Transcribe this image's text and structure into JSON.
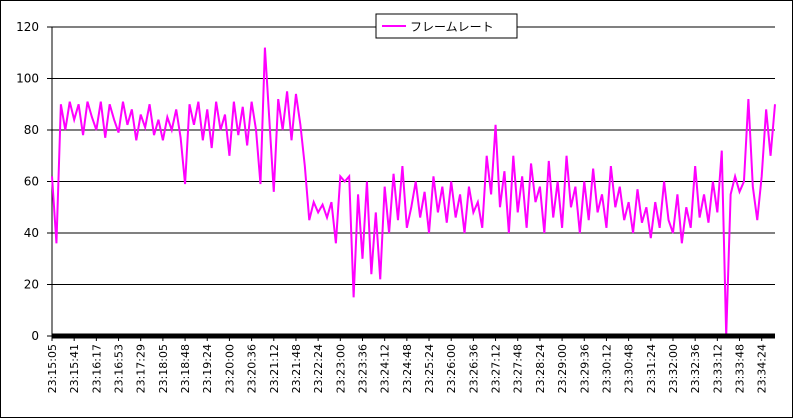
{
  "chart_data": {
    "type": "line",
    "categories": [
      "23:15:05",
      null,
      null,
      null,
      null,
      "23:15:41",
      null,
      null,
      null,
      null,
      "23:16:17",
      null,
      null,
      null,
      null,
      "23:16:53",
      null,
      null,
      null,
      null,
      "23:17:29",
      null,
      null,
      null,
      null,
      "23:18:05",
      null,
      null,
      null,
      null,
      "23:18:48",
      null,
      null,
      null,
      null,
      "23:19:24",
      null,
      null,
      null,
      null,
      "23:20:00",
      null,
      null,
      null,
      null,
      "23:20:36",
      null,
      null,
      null,
      null,
      "23:21:12",
      null,
      null,
      null,
      null,
      "23:21:48",
      null,
      null,
      null,
      null,
      "23:22:24",
      null,
      null,
      null,
      null,
      "23:23:00",
      null,
      null,
      null,
      null,
      "23:23:36",
      null,
      null,
      null,
      null,
      "23:24:12",
      null,
      null,
      null,
      null,
      "23:24:48",
      null,
      null,
      null,
      null,
      "23:25:24",
      null,
      null,
      null,
      null,
      "23:26:00",
      null,
      null,
      null,
      null,
      "23:26:36",
      null,
      null,
      null,
      null,
      "23:27:12",
      null,
      null,
      null,
      null,
      "23:27:48",
      null,
      null,
      null,
      null,
      "23:28:24",
      null,
      null,
      null,
      null,
      "23:29:00",
      null,
      null,
      null,
      null,
      "23:29:36",
      null,
      null,
      null,
      null,
      "23:30:12",
      null,
      null,
      null,
      null,
      "23:30:48",
      null,
      null,
      null,
      null,
      "23:31:24",
      null,
      null,
      null,
      null,
      "23:32:00",
      null,
      null,
      null,
      null,
      "23:32:36",
      null,
      null,
      null,
      null,
      "23:33:12",
      null,
      null,
      null,
      null,
      "23:33:48",
      null,
      null,
      null,
      null,
      "23:34:24",
      null,
      null,
      null
    ],
    "series": [
      {
        "name": "フレームレート",
        "color": "#ff00ff",
        "values": [
          62,
          36,
          90,
          80,
          91,
          84,
          90,
          78,
          91,
          85,
          80,
          91,
          77,
          90,
          84,
          79,
          91,
          82,
          88,
          76,
          86,
          81,
          90,
          78,
          84,
          76,
          85,
          80,
          88,
          77,
          59,
          90,
          82,
          91,
          76,
          88,
          73,
          91,
          80,
          86,
          70,
          91,
          78,
          89,
          74,
          91,
          80,
          59,
          112,
          84,
          56,
          92,
          80,
          95,
          76,
          94,
          82,
          66,
          45,
          52,
          48,
          51,
          46,
          52,
          36,
          62,
          60,
          62,
          15,
          55,
          30,
          60,
          24,
          48,
          22,
          58,
          40,
          63,
          45,
          66,
          42,
          50,
          60,
          46,
          56,
          40,
          62,
          48,
          58,
          44,
          60,
          46,
          55,
          40,
          58,
          48,
          52,
          42,
          70,
          55,
          82,
          50,
          64,
          40,
          70,
          48,
          62,
          42,
          67,
          52,
          58,
          40,
          68,
          46,
          60,
          42,
          70,
          50,
          58,
          40,
          60,
          45,
          65,
          48,
          55,
          42,
          66,
          50,
          58,
          45,
          52,
          40,
          57,
          44,
          50,
          38,
          52,
          42,
          60,
          45,
          40,
          55,
          36,
          50,
          42,
          66,
          46,
          55,
          44,
          60,
          48,
          72,
          0,
          55,
          62,
          56,
          60,
          92,
          58,
          45,
          62,
          88,
          70,
          90
        ]
      }
    ],
    "ylim": [
      0,
      120
    ],
    "yticks": [
      0,
      20,
      40,
      60,
      80,
      100,
      120
    ],
    "grid": true,
    "legend": "top"
  }
}
